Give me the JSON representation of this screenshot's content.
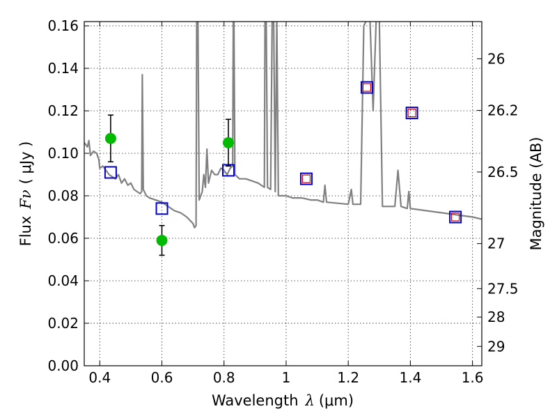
{
  "chart_data": {
    "type": "scatter",
    "xlabel_prefix": "Wavelength",
    "xlabel_symbol": "λ",
    "xlabel_unit": "(μm)",
    "ylabel_prefix": "Flux",
    "ylabel_symbol": "Fν",
    "ylabel_unit": "( μJy )",
    "y2label": "Magnitude (AB)",
    "xlim": [
      0.35,
      1.63
    ],
    "ylim": [
      0.0,
      0.162
    ],
    "grid": true,
    "x_ticks": [
      0.4,
      0.6,
      0.8,
      1.0,
      1.2,
      1.4,
      1.6
    ],
    "x_tick_labels": [
      "0.4",
      "0.6",
      "0.8",
      "1",
      "1.2",
      "1.4",
      "1.6"
    ],
    "y_ticks": [
      0.0,
      0.02,
      0.04,
      0.06,
      0.08,
      0.1,
      0.12,
      0.14,
      0.16
    ],
    "y_tick_labels": [
      "0.00",
      "0.02",
      "0.04",
      "0.06",
      "0.08",
      "0.10",
      "0.12",
      "0.14",
      "0.16"
    ],
    "y2_ticks": [
      {
        "label": "26",
        "flux": 0.1445
      },
      {
        "label": "26.2",
        "flux": 0.1202
      },
      {
        "label": "26.5",
        "flux": 0.0912
      },
      {
        "label": "27",
        "flux": 0.0575
      },
      {
        "label": "27.5",
        "flux": 0.0363
      },
      {
        "label": "28",
        "flux": 0.0229
      },
      {
        "label": "29",
        "flux": 0.0091
      }
    ],
    "colors": {
      "model": "#808080",
      "observed": "#00bb00",
      "synthetic": "#0000cc",
      "synthetic_inner": "#cc0000",
      "errorbar": "#000000"
    },
    "model_spectrum": [
      [
        0.35,
        0.105
      ],
      [
        0.36,
        0.103
      ],
      [
        0.365,
        0.106
      ],
      [
        0.37,
        0.099
      ],
      [
        0.38,
        0.101
      ],
      [
        0.39,
        0.1
      ],
      [
        0.397,
        0.097
      ],
      [
        0.4,
        0.093
      ],
      [
        0.41,
        0.094
      ],
      [
        0.42,
        0.092
      ],
      [
        0.43,
        0.09
      ],
      [
        0.44,
        0.089
      ],
      [
        0.45,
        0.088
      ],
      [
        0.46,
        0.09
      ],
      [
        0.47,
        0.086
      ],
      [
        0.48,
        0.088
      ],
      [
        0.49,
        0.085
      ],
      [
        0.5,
        0.086
      ],
      [
        0.51,
        0.083
      ],
      [
        0.52,
        0.082
      ],
      [
        0.53,
        0.081
      ],
      [
        0.535,
        0.082
      ],
      [
        0.537,
        0.137
      ],
      [
        0.54,
        0.083
      ],
      [
        0.55,
        0.08
      ],
      [
        0.56,
        0.079
      ],
      [
        0.58,
        0.078
      ],
      [
        0.6,
        0.077
      ],
      [
        0.62,
        0.075
      ],
      [
        0.64,
        0.073
      ],
      [
        0.66,
        0.072
      ],
      [
        0.68,
        0.07
      ],
      [
        0.7,
        0.067
      ],
      [
        0.705,
        0.065
      ],
      [
        0.71,
        0.066
      ],
      [
        0.712,
        0.163
      ],
      [
        0.716,
        0.163
      ],
      [
        0.72,
        0.078
      ],
      [
        0.73,
        0.082
      ],
      [
        0.735,
        0.09
      ],
      [
        0.74,
        0.084
      ],
      [
        0.745,
        0.102
      ],
      [
        0.75,
        0.086
      ],
      [
        0.76,
        0.092
      ],
      [
        0.77,
        0.09
      ],
      [
        0.78,
        0.09
      ],
      [
        0.79,
        0.093
      ],
      [
        0.8,
        0.092
      ],
      [
        0.81,
        0.09
      ],
      [
        0.82,
        0.093
      ],
      [
        0.828,
        0.094
      ],
      [
        0.83,
        0.163
      ],
      [
        0.832,
        0.163
      ],
      [
        0.835,
        0.09
      ],
      [
        0.85,
        0.088
      ],
      [
        0.87,
        0.088
      ],
      [
        0.89,
        0.087
      ],
      [
        0.91,
        0.086
      ],
      [
        0.93,
        0.084
      ],
      [
        0.932,
        0.163
      ],
      [
        0.936,
        0.163
      ],
      [
        0.94,
        0.084
      ],
      [
        0.95,
        0.083
      ],
      [
        0.955,
        0.163
      ],
      [
        0.96,
        0.163
      ],
      [
        0.965,
        0.082
      ],
      [
        0.97,
        0.163
      ],
      [
        0.975,
        0.08
      ],
      [
        1.0,
        0.08
      ],
      [
        1.02,
        0.079
      ],
      [
        1.05,
        0.079
      ],
      [
        1.08,
        0.078
      ],
      [
        1.1,
        0.078
      ],
      [
        1.12,
        0.077
      ],
      [
        1.125,
        0.085
      ],
      [
        1.13,
        0.077
      ],
      [
        1.2,
        0.076
      ],
      [
        1.21,
        0.083
      ],
      [
        1.215,
        0.076
      ],
      [
        1.24,
        0.076
      ],
      [
        1.25,
        0.16
      ],
      [
        1.26,
        0.163
      ],
      [
        1.27,
        0.163
      ],
      [
        1.28,
        0.12
      ],
      [
        1.29,
        0.163
      ],
      [
        1.3,
        0.163
      ],
      [
        1.31,
        0.075
      ],
      [
        1.35,
        0.075
      ],
      [
        1.36,
        0.092
      ],
      [
        1.37,
        0.075
      ],
      [
        1.39,
        0.074
      ],
      [
        1.395,
        0.082
      ],
      [
        1.4,
        0.074
      ],
      [
        1.45,
        0.073
      ],
      [
        1.5,
        0.072
      ],
      [
        1.55,
        0.071
      ],
      [
        1.6,
        0.07
      ],
      [
        1.63,
        0.069
      ]
    ],
    "observed_points": [
      {
        "x": 0.435,
        "y": 0.107,
        "err": 0.011
      },
      {
        "x": 0.6,
        "y": 0.059,
        "err": 0.007
      },
      {
        "x": 0.814,
        "y": 0.105,
        "err": 0.011
      }
    ],
    "synthetic_points": [
      {
        "x": 0.435,
        "y": 0.091
      },
      {
        "x": 0.6,
        "y": 0.074
      },
      {
        "x": 0.814,
        "y": 0.092
      },
      {
        "x": 1.065,
        "y": 0.088,
        "inner": true
      },
      {
        "x": 1.26,
        "y": 0.131,
        "inner": true
      },
      {
        "x": 1.405,
        "y": 0.119,
        "inner": true
      },
      {
        "x": 1.545,
        "y": 0.07,
        "inner": true
      }
    ]
  }
}
